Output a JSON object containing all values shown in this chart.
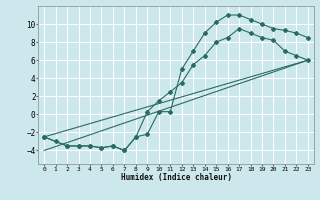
{
  "xlabel": "Humidex (Indice chaleur)",
  "xlim": [
    -0.5,
    23.5
  ],
  "ylim": [
    -5.5,
    12
  ],
  "yticks": [
    -4,
    -2,
    0,
    2,
    4,
    6,
    8,
    10
  ],
  "xticks": [
    0,
    1,
    2,
    3,
    4,
    5,
    6,
    7,
    8,
    9,
    10,
    11,
    12,
    13,
    14,
    15,
    16,
    17,
    18,
    19,
    20,
    21,
    22,
    23
  ],
  "bg_color": "#cde8ec",
  "grid_color": "#ffffff",
  "line_color": "#2a6b60",
  "line1_x": [
    0,
    1,
    2,
    3,
    4,
    5,
    6,
    7,
    8,
    9,
    10,
    11,
    12,
    13,
    14,
    15,
    16,
    17,
    18,
    19,
    20,
    21,
    22,
    23
  ],
  "line1_y": [
    -2.5,
    -3.0,
    -3.5,
    -3.5,
    -3.5,
    -3.7,
    -3.5,
    -4.0,
    -2.5,
    -2.2,
    0.3,
    0.3,
    5.0,
    7.0,
    9.0,
    10.2,
    11.0,
    11.0,
    10.5,
    10.0,
    9.5,
    9.3,
    9.0,
    8.5
  ],
  "line2_x": [
    0,
    2,
    3,
    4,
    5,
    6,
    7,
    8,
    9,
    10,
    11,
    12,
    13,
    14,
    15,
    16,
    17,
    18,
    19,
    20,
    21,
    22,
    23
  ],
  "line2_y": [
    -2.5,
    -3.5,
    -3.5,
    -3.5,
    -3.7,
    -3.5,
    -4.0,
    -2.5,
    0.3,
    1.5,
    2.5,
    3.5,
    5.5,
    6.5,
    8.0,
    8.5,
    9.5,
    9.0,
    8.5,
    8.2,
    7.0,
    6.5,
    6.0
  ],
  "line3_x": [
    0,
    23
  ],
  "line3_y": [
    -2.5,
    6.0
  ],
  "line4_x": [
    0,
    23
  ],
  "line4_y": [
    -4.0,
    6.0
  ]
}
